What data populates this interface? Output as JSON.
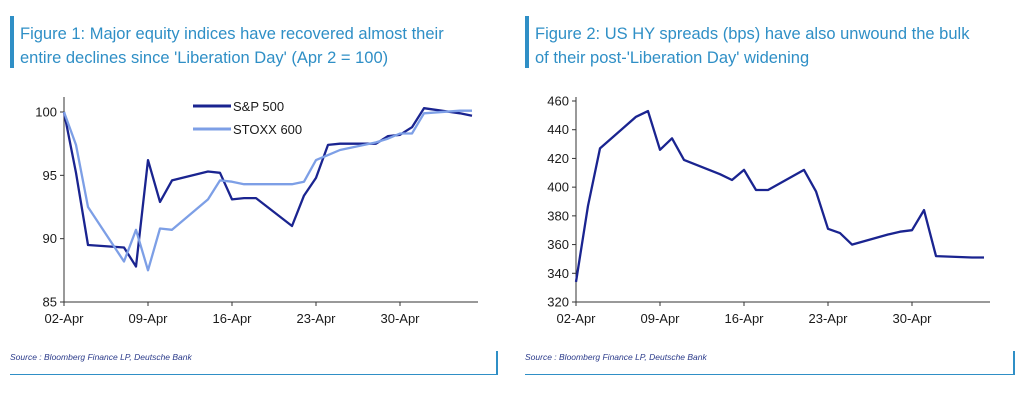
{
  "figure1": {
    "title_line1": "Figure 1: Major equity indices have recovered almost their",
    "title_line2": "entire declines since 'Liberation Day' (Apr 2 = 100)",
    "source": "Source : Bloomberg Finance LP, Deutsche Bank"
  },
  "figure2": {
    "title_line1": "Figure 2: US HY spreads (bps) have also unwound the bulk",
    "title_line2": "of their post-'Liberation Day' widening",
    "source": "Source : Bloomberg Finance LP, Deutsche Bank"
  },
  "colors": {
    "title": "#2f8fc6",
    "sp500": "#1a2490",
    "stoxx600": "#7d9fe6",
    "hy": "#1a2490",
    "axis": "#333333"
  },
  "chart_data": [
    {
      "type": "line",
      "x_tick_labels": [
        "02-Apr",
        "09-Apr",
        "16-Apr",
        "23-Apr",
        "30-Apr"
      ],
      "x_tick_days": [
        2,
        9,
        16,
        23,
        30
      ],
      "xlim_days": [
        2,
        36
      ],
      "ylim": [
        85,
        101.5
      ],
      "y_ticks": [
        85,
        90,
        95,
        100
      ],
      "legend_position": "top-center",
      "series": [
        {
          "name": "S&P 500",
          "x_days": [
            2,
            3,
            4,
            7,
            8,
            9,
            10,
            11,
            14,
            15,
            16,
            17,
            18,
            21,
            22,
            23,
            24,
            25,
            28,
            29,
            30,
            1,
            2,
            5,
            6
          ],
          "x": [
            "Apr 2",
            "Apr 3",
            "Apr 4",
            "Apr 7",
            "Apr 8",
            "Apr 9",
            "Apr 10",
            "Apr 11",
            "Apr 14",
            "Apr 15",
            "Apr 16",
            "Apr 17",
            "Apr 18",
            "Apr 21",
            "Apr 22",
            "Apr 23",
            "Apr 24",
            "Apr 25",
            "Apr 28",
            "Apr 29",
            "Apr 30",
            "May 1",
            "May 2",
            "May 5",
            "May 6"
          ],
          "values": [
            100,
            95.2,
            89.5,
            89.3,
            87.8,
            96.2,
            92.9,
            94.6,
            95.3,
            95.2,
            93.1,
            93.2,
            93.2,
            91.0,
            93.4,
            94.8,
            97.4,
            97.5,
            97.5,
            98.1,
            98.2,
            98.8,
            100.3,
            99.9,
            99.7
          ]
        },
        {
          "name": "STOXX 600",
          "x": [
            "Apr 2",
            "Apr 3",
            "Apr 4",
            "Apr 7",
            "Apr 8",
            "Apr 9",
            "Apr 10",
            "Apr 11",
            "Apr 14",
            "Apr 15",
            "Apr 16",
            "Apr 17",
            "Apr 18",
            "Apr 21",
            "Apr 22",
            "Apr 23",
            "Apr 24",
            "Apr 25",
            "Apr 28",
            "Apr 29",
            "Apr 30",
            "May 1",
            "May 2",
            "May 5",
            "May 6"
          ],
          "x_days": [
            2,
            3,
            4,
            7,
            8,
            9,
            10,
            11,
            14,
            15,
            16,
            17,
            18,
            21,
            22,
            23,
            24,
            25,
            28,
            29,
            30,
            1,
            2,
            5,
            6
          ],
          "values": [
            100,
            97.4,
            92.5,
            88.2,
            90.7,
            87.5,
            90.8,
            90.7,
            93.1,
            94.6,
            94.5,
            94.3,
            94.3,
            94.3,
            94.5,
            96.2,
            96.6,
            97.0,
            97.6,
            97.9,
            98.3,
            98.3,
            99.9,
            100.1,
            100.1
          ]
        }
      ]
    },
    {
      "type": "line",
      "x_tick_labels": [
        "02-Apr",
        "09-Apr",
        "16-Apr",
        "23-Apr",
        "30-Apr"
      ],
      "ylim": [
        320,
        460
      ],
      "y_ticks": [
        320,
        340,
        360,
        380,
        400,
        420,
        440,
        460
      ],
      "series": [
        {
          "x": [
            "Apr 2",
            "Apr 3",
            "Apr 4",
            "Apr 7",
            "Apr 8",
            "Apr 9",
            "Apr 10",
            "Apr 11",
            "Apr 14",
            "Apr 15",
            "Apr 16",
            "Apr 17",
            "Apr 18",
            "Apr 21",
            "Apr 22",
            "Apr 23",
            "Apr 24",
            "Apr 25",
            "Apr 28",
            "Apr 29",
            "Apr 30",
            "May 1",
            "May 2",
            "May 5",
            "May 6"
          ],
          "x_days": [
            2,
            3,
            4,
            7,
            8,
            9,
            10,
            11,
            14,
            15,
            16,
            17,
            18,
            21,
            22,
            23,
            24,
            25,
            28,
            29,
            30,
            1,
            2,
            5,
            6
          ],
          "values": [
            334,
            387,
            427,
            449,
            453,
            426,
            434,
            419,
            409,
            405,
            412,
            398,
            398,
            412,
            397,
            371,
            368,
            360,
            367,
            369,
            370,
            384,
            352,
            351,
            351
          ]
        }
      ]
    }
  ]
}
